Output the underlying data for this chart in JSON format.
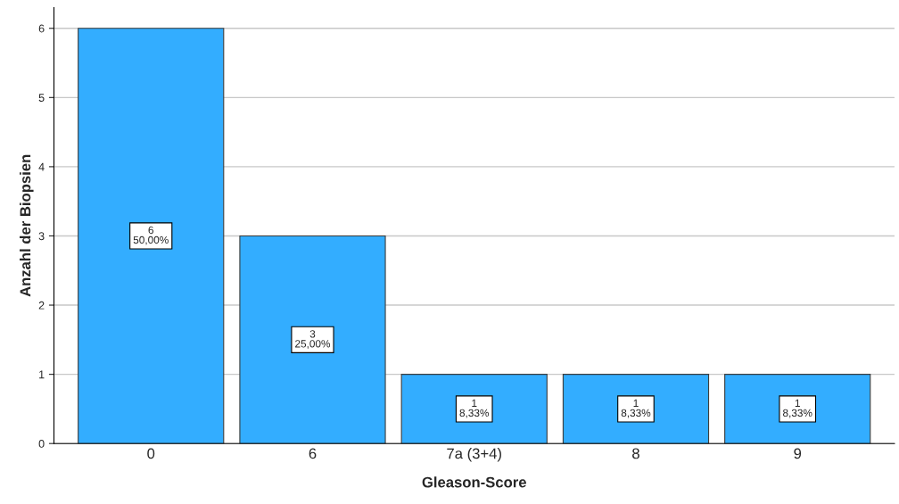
{
  "chart_data": {
    "type": "bar",
    "xlabel": "Gleason-Score",
    "ylabel": "Anzahl der Biopsien",
    "categories": [
      "0",
      "6",
      "7a (3+4)",
      "8",
      "9"
    ],
    "values": [
      6,
      3,
      1,
      1,
      1
    ],
    "color": "#33adff",
    "value_labels": [
      "6\n50,00%",
      "3\n25,00%",
      "1\n8,33%",
      "1\n8,33%",
      "1\n8,33%"
    ],
    "ylim": [
      0,
      6.3
    ],
    "yticks": [
      0,
      1,
      2,
      3,
      4,
      5,
      6
    ],
    "grid": "y"
  }
}
